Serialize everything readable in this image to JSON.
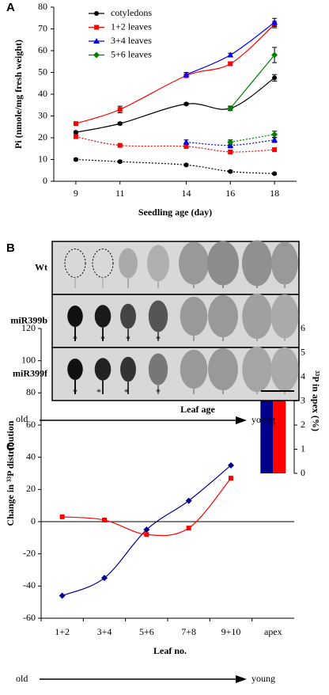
{
  "chart_data": [
    {
      "type": "line",
      "panel": "A",
      "xlabel": "Seedling age (day)",
      "ylabel": "Pi (nmole/mg fresh weight)",
      "x": [
        9,
        11,
        14,
        16,
        18
      ],
      "xlim": [
        8,
        19
      ],
      "xticks": [
        9,
        11,
        14,
        16,
        18
      ],
      "ylim": [
        0,
        80
      ],
      "yticks": [
        0,
        10,
        20,
        30,
        40,
        50,
        60,
        70,
        80
      ],
      "legend": "upper left",
      "series": [
        {
          "name": "cotyledons",
          "color": "#000000",
          "marker": "circle",
          "linestyle": "solid",
          "values": [
            22.5,
            26.5,
            35.5,
            33.5,
            47.5
          ],
          "errors": [
            0.5,
            0.6,
            0.5,
            1,
            1.5
          ]
        },
        {
          "name": "1+2 leaves",
          "color": "#ff0000",
          "marker": "square",
          "linestyle": "solid",
          "values": [
            26.5,
            33,
            48.5,
            54,
            72
          ],
          "errors": [
            0.5,
            1.5,
            0.8,
            0.8,
            1.5
          ]
        },
        {
          "name": "3+4 leaves",
          "color": "#0000ff",
          "marker": "triangle",
          "linestyle": "solid",
          "values": [
            null,
            null,
            49,
            58,
            73
          ],
          "errors": [
            null,
            null,
            1,
            0.8,
            1.8
          ]
        },
        {
          "name": "5+6 leaves",
          "color": "#008000",
          "marker": "diamond",
          "linestyle": "solid",
          "values": [
            null,
            null,
            null,
            33.5,
            58
          ],
          "errors": [
            null,
            null,
            null,
            1,
            3.5
          ]
        },
        {
          "color": "#000000",
          "marker": "circle",
          "linestyle": "dotted",
          "values": [
            10,
            9,
            7.5,
            4.5,
            3.5
          ],
          "errors": [
            0.5,
            0.4,
            0.4,
            0.4,
            0.4
          ]
        },
        {
          "color": "#ff0000",
          "marker": "square",
          "linestyle": "dotted",
          "values": [
            20.5,
            16.5,
            16,
            13.5,
            14.5
          ],
          "errors": [
            0.8,
            0.5,
            0.5,
            0.8,
            0.8
          ]
        },
        {
          "color": "#0000ff",
          "marker": "triangle",
          "linestyle": "dotted",
          "values": [
            null,
            null,
            18,
            16.5,
            19
          ],
          "errors": [
            null,
            null,
            1,
            1.2,
            1.2
          ]
        },
        {
          "color": "#008000",
          "marker": "diamond",
          "linestyle": "dotted",
          "values": [
            null,
            null,
            null,
            18,
            21.5
          ],
          "errors": [
            null,
            null,
            null,
            1,
            1.5
          ]
        }
      ]
    },
    {
      "type": "combo",
      "panel": "C",
      "xlabel": "Leaf no.",
      "ylabel": "Change in ³³P distribution",
      "y2label": "³³P in apex (%)",
      "annotations": [
        "old",
        "young"
      ],
      "categories": [
        "1+2",
        "3+4",
        "5+6",
        "7+8",
        "9+10",
        "apex"
      ],
      "ylim": [
        -60,
        120
      ],
      "yticks": [
        -60,
        -40,
        -20,
        0,
        20,
        40,
        60,
        80,
        100,
        120
      ],
      "y2lim": [
        -6,
        6
      ],
      "y2ticks": [
        0,
        1,
        2,
        3,
        4,
        5,
        6
      ],
      "legend": "upper left",
      "series": [
        {
          "name": "Wt",
          "type": "bar",
          "axis": "y2",
          "color": "#00008b",
          "values": [
            null,
            null,
            null,
            null,
            null,
            4.35
          ],
          "errors": [
            null,
            null,
            null,
            null,
            null,
            2
          ]
        },
        {
          "name": "miR399b",
          "type": "bar",
          "axis": "y2",
          "color": "#ff0000",
          "values": [
            null,
            null,
            null,
            null,
            null,
            3.1
          ],
          "errors": [
            null,
            null,
            null,
            null,
            null,
            0.7
          ]
        },
        {
          "name": "Wt",
          "type": "line",
          "color": "#00008b",
          "marker": "diamond",
          "values": [
            -46,
            -35,
            -5,
            13,
            35,
            null
          ]
        },
        {
          "name": "miR399b",
          "type": "line",
          "color": "#ff0000",
          "marker": "square",
          "values": [
            3,
            1,
            -8,
            -4,
            27,
            null
          ]
        }
      ]
    }
  ],
  "panel_b": {
    "panel": "B",
    "rows": [
      "Wt",
      "miR399b",
      "miR399f"
    ],
    "asterisk": "*",
    "axis_label": "Leaf age",
    "left": "old",
    "right": "young"
  }
}
